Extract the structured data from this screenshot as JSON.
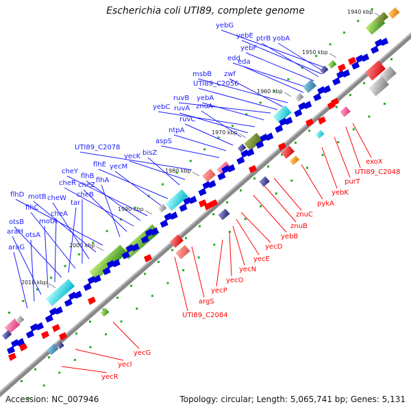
{
  "title": "Escherichia coli UTI89, complete genome",
  "footer": {
    "accession": "Accession: NC_007946",
    "summary": "Topology: circular; Length: 5,065,741 bp; Genes: 5,131"
  },
  "colors": {
    "forward_label": "#1a1aff",
    "reverse_label": "#ff0000",
    "forward_arrow": "#0000dd",
    "reverse_arrow": "#ff0000",
    "backbone": "#777777",
    "tick_green": "#22aa22"
  },
  "kbp_ticks": [
    "1940 kbp",
    "1950 kbp",
    "1960 kbp",
    "1970 kbp",
    "1980 kbp",
    "1990 kbp",
    "2000 kbp",
    "2010 kbp"
  ],
  "forward_genes": [
    "yebG",
    "yebE",
    "ptrB",
    "yobA",
    "yebF",
    "edd",
    "eda",
    "msbB",
    "zwf",
    "UTI89_C2056",
    "ruvB",
    "yebA",
    "yebC",
    "ruvA",
    "znuA",
    "ruvC",
    "ntpA",
    "aspS",
    "UTI89_C2078",
    "yecK",
    "bisZ",
    "flhE",
    "yecM",
    "cheY",
    "flhB",
    "cheR",
    "cheZ",
    "flhA",
    "flhD",
    "motB",
    "cheW",
    "cheB",
    "flhC",
    "tar",
    "otsB",
    "cheA",
    "motA",
    "araH",
    "otsA",
    "araG"
  ],
  "reverse_genes": [
    "exoX",
    "UTI89_C2048",
    "purT",
    "yebK",
    "pykA",
    "znuC",
    "znuB",
    "yebB",
    "yecD",
    "yecE",
    "yecN",
    "yecO",
    "yecP",
    "argS",
    "UTI89_C2084",
    "yecG",
    "yecI",
    "yecR"
  ]
}
